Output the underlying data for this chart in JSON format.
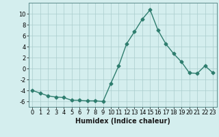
{
  "x": [
    0,
    1,
    2,
    3,
    4,
    5,
    6,
    7,
    8,
    9,
    10,
    11,
    12,
    13,
    14,
    15,
    16,
    17,
    18,
    19,
    20,
    21,
    22,
    23
  ],
  "y": [
    -4.0,
    -4.5,
    -5.0,
    -5.2,
    -5.3,
    -5.8,
    -5.8,
    -5.9,
    -5.9,
    -6.0,
    -2.7,
    0.5,
    4.5,
    6.7,
    9.0,
    10.7,
    7.0,
    4.5,
    2.7,
    1.2,
    -0.8,
    -0.9,
    0.5,
    -0.8
  ],
  "line_color": "#2e7d6e",
  "marker": "D",
  "marker_size": 2.5,
  "bg_color": "#d4eeee",
  "grid_color": "#aacccc",
  "xlabel": "Humidex (Indice chaleur)",
  "xlim": [
    -0.5,
    23.5
  ],
  "ylim": [
    -7,
    12
  ],
  "yticks": [
    -6,
    -4,
    -2,
    0,
    2,
    4,
    6,
    8,
    10
  ],
  "xticks": [
    0,
    1,
    2,
    3,
    4,
    5,
    6,
    7,
    8,
    9,
    10,
    11,
    12,
    13,
    14,
    15,
    16,
    17,
    18,
    19,
    20,
    21,
    22,
    23
  ],
  "xlabel_fontsize": 7,
  "tick_fontsize": 6,
  "line_width": 1.0
}
